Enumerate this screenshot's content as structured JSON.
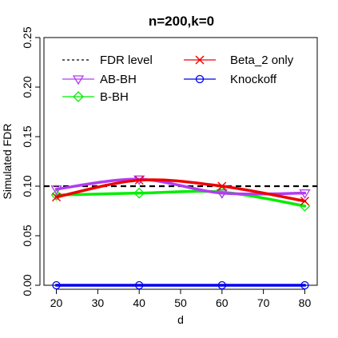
{
  "chart_data": {
    "type": "line",
    "title": "n=200,k=0",
    "xlabel": "d",
    "ylabel": "Simulated FDR",
    "x": [
      20,
      40,
      60,
      80
    ],
    "xlim": [
      17,
      83
    ],
    "ylim": [
      0,
      0.25
    ],
    "xticks": [
      "20",
      "30",
      "40",
      "50",
      "60",
      "70",
      "80"
    ],
    "yticks": [
      "0.00",
      "0.05",
      "0.10",
      "0.15",
      "0.20",
      "0.25"
    ],
    "reference_line": {
      "name": "FDR level",
      "value": 0.1,
      "color": "#000000"
    },
    "series": [
      {
        "name": "AB-BH",
        "values": [
          0.097,
          0.107,
          0.093,
          0.093
        ],
        "color": "#b23cf0",
        "marker": "triangle-down"
      },
      {
        "name": "B-BH",
        "values": [
          0.091,
          0.093,
          0.094,
          0.08
        ],
        "color": "#00ee00",
        "marker": "diamond"
      },
      {
        "name": "Beta_2 only",
        "values": [
          0.089,
          0.106,
          0.1,
          0.085
        ],
        "color": "#ee0000",
        "marker": "x"
      },
      {
        "name": "Knockoff",
        "values": [
          0.0,
          0.0,
          0.0,
          0.0
        ],
        "color": "#0000ee",
        "marker": "circle"
      }
    ],
    "legend": {
      "position": "top",
      "columns": 2
    }
  }
}
